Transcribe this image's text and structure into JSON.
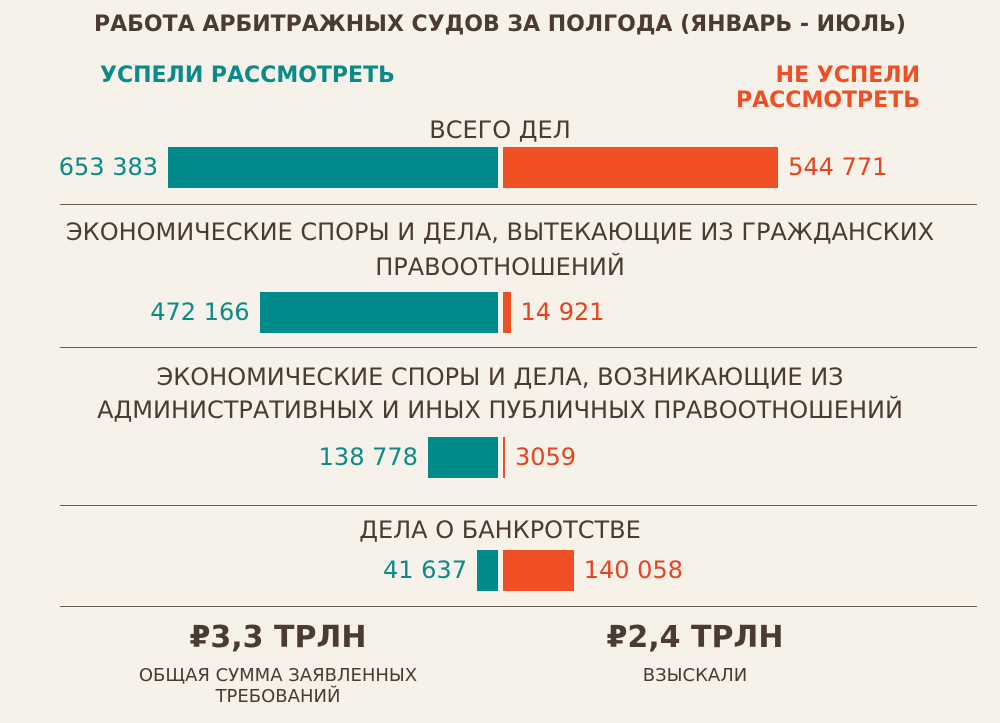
{
  "chart_data": {
    "type": "bar",
    "title": "РАБОТА АРБИТРАЖНЫХ СУДОВ ЗА ПОЛГОДА (ЯНВАРЬ - ИЮЛЬ)",
    "orientation": "horizontal-diverging",
    "series": [
      {
        "name": "УСПЕЛИ РАССМОТРЕТЬ",
        "color": "#008b8b",
        "values": [
          653383,
          472166,
          138778,
          41637
        ],
        "labels": [
          "653 383",
          "472 166",
          "138 778",
          "41 637"
        ]
      },
      {
        "name": "НЕ УСПЕЛИ РАССМОТРЕТЬ",
        "color": "#f04e23",
        "values": [
          544771,
          14921,
          3059,
          140058
        ],
        "labels": [
          "544 771",
          "14 921",
          "3059",
          "140 058"
        ]
      }
    ],
    "categories": [
      [
        "ВСЕГО ДЕЛ"
      ],
      [
        "ЭКОНОМИЧЕСКИЕ СПОРЫ И ДЕЛА, ВЫТЕКАЮЩИЕ ИЗ ГРАЖДАНСКИХ",
        "ПРАВООТНОШЕНИЙ"
      ],
      [
        "ЭКОНОМИЧЕСКИЕ СПОРЫ И ДЕЛА, ВОЗНИКАЮЩИЕ ИЗ",
        "АДМИНИСТРАТИВНЫХ И ИНЫХ ПУБЛИЧНЫХ ПРАВООТНОШЕНИЙ"
      ],
      [
        "ДЕЛА О БАНКРОТСТВЕ"
      ]
    ]
  },
  "summary": [
    {
      "value": "₽3,3 ТРЛН",
      "caption": [
        "ОБЩАЯ СУММА ЗАЯВЛЕННЫХ",
        "ТРЕБОВАНИЙ"
      ]
    },
    {
      "value": "₽2,4 ТРЛН",
      "caption": [
        "ВЗЫСКАЛИ"
      ]
    }
  ]
}
